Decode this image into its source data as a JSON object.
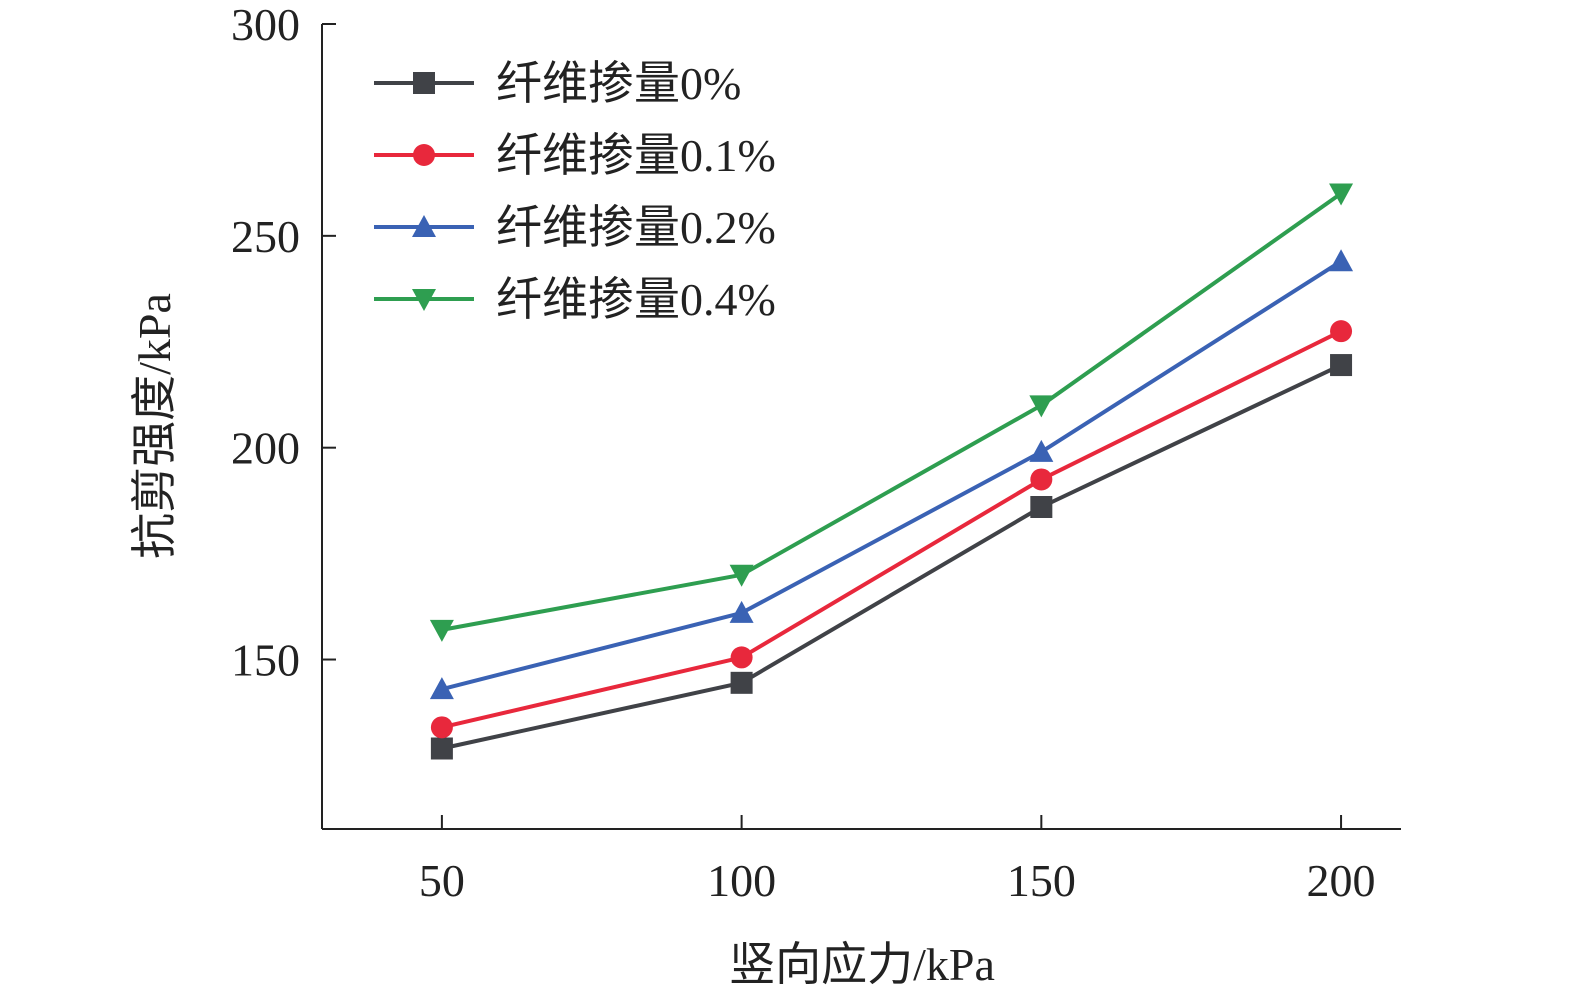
{
  "chart_data": {
    "type": "line",
    "xlabel": "竖向应力/kPa",
    "ylabel": "抗剪强度/kPa",
    "x": [
      50,
      100,
      150,
      200
    ],
    "x_ticks": [
      "50",
      "100",
      "150",
      "200"
    ],
    "xlim": [
      30,
      210
    ],
    "ylim": [
      110,
      300
    ],
    "y_ticks": [
      "150",
      "200",
      "250",
      "300"
    ],
    "y_tick_values": [
      150,
      200,
      250,
      300
    ],
    "grid": false,
    "legend_position": "top-left",
    "series": [
      {
        "name": "纤维掺量0%",
        "color": "#404247",
        "marker": "square",
        "values": [
          129,
          144.5,
          186,
          219.5
        ]
      },
      {
        "name": "纤维掺量0.1%",
        "color": "#e8283c",
        "marker": "circle",
        "values": [
          134,
          150.5,
          192.5,
          227.5
        ]
      },
      {
        "name": "纤维掺量0.2%",
        "color": "#3a62b4",
        "marker": "triangle-up",
        "values": [
          143,
          161,
          199,
          244
        ]
      },
      {
        "name": "纤维掺量0.4%",
        "color": "#2e9e50",
        "marker": "triangle-down",
        "values": [
          157,
          170,
          210,
          260
        ]
      }
    ]
  }
}
